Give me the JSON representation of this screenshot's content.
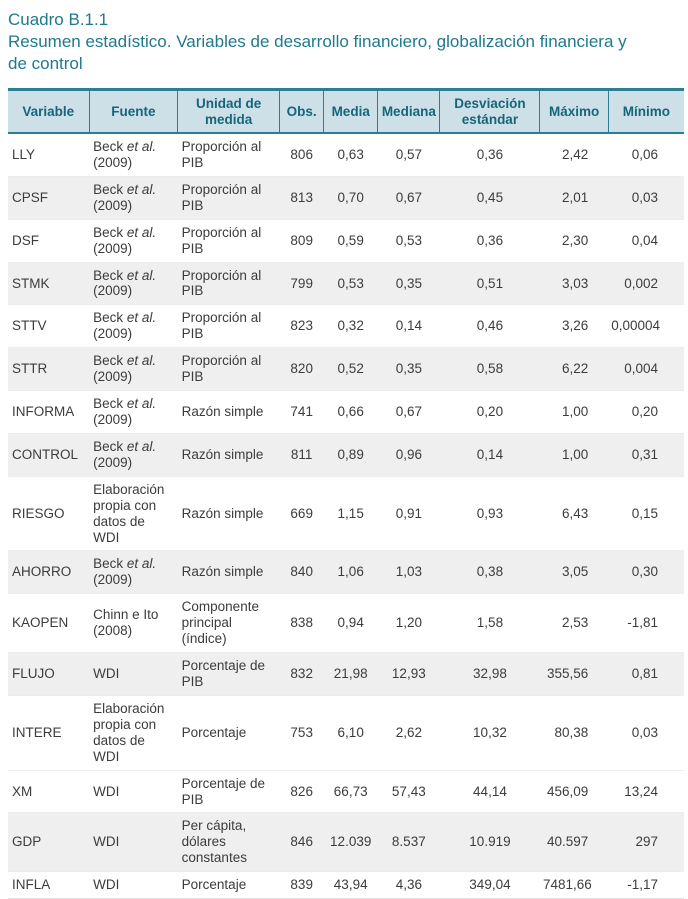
{
  "title": {
    "label": "Cuadro B.1.1",
    "heading": "Resumen estadístico. Variables de desarrollo financiero, globalización financiera y de control"
  },
  "colors": {
    "accent_teal": "#20798c",
    "header_bg": "#cee0e7",
    "header_text": "#17657a",
    "header_divider": "#2c7f91",
    "zebra_row_bg": "#f0efef",
    "row_separator": "#ececec",
    "body_text": "#3c3c3c"
  },
  "table": {
    "columns": [
      {
        "key": "variable",
        "label": "Variable",
        "align": "left",
        "width": "12.0%"
      },
      {
        "key": "fuente",
        "label": "Fuente",
        "align": "left",
        "width": "13.1%"
      },
      {
        "key": "unidad",
        "label": "Unidad de medida",
        "align": "left",
        "width": "15.1%"
      },
      {
        "key": "obs",
        "label": "Obs.",
        "align": "center",
        "width": "6.5%"
      },
      {
        "key": "media",
        "label": "Media",
        "align": "center",
        "width": "8.0%"
      },
      {
        "key": "mediana",
        "label": "Mediana",
        "align": "center",
        "width": "9.2%"
      },
      {
        "key": "desviacion",
        "label": "Desviación estándar",
        "align": "center",
        "width": "14.8%"
      },
      {
        "key": "maximo",
        "label": "Máximo",
        "align": "right",
        "width": "10.1%"
      },
      {
        "key": "minimo",
        "label": "Mínimo",
        "align": "right",
        "width": "11.2%"
      }
    ],
    "rows": [
      {
        "variable": "LLY",
        "fuente": "Beck *et al.* (2009)",
        "unidad": "Proporción al PIB",
        "obs": "806",
        "media": "0,63",
        "mediana": "0,57",
        "desviacion": "0,36",
        "maximo": "2,42",
        "minimo": "0,06",
        "shaded": false
      },
      {
        "variable": "CPSF",
        "fuente": "Beck *et al.* (2009)",
        "unidad": "Proporción al PIB",
        "obs": "813",
        "media": "0,70",
        "mediana": "0,67",
        "desviacion": "0,45",
        "maximo": "2,01",
        "minimo": "0,03",
        "shaded": true
      },
      {
        "variable": "DSF",
        "fuente": "Beck *et al.* (2009)",
        "unidad": "Proporción al PIB",
        "obs": "809",
        "media": "0,59",
        "mediana": "0,53",
        "desviacion": "0,36",
        "maximo": "2,30",
        "minimo": "0,04",
        "shaded": false
      },
      {
        "variable": "STMK",
        "fuente": "Beck *et al.* (2009)",
        "unidad": "Proporción al PIB",
        "obs": "799",
        "media": "0,53",
        "mediana": "0,35",
        "desviacion": "0,51",
        "maximo": "3,03",
        "minimo": "0,002",
        "shaded": true
      },
      {
        "variable": "STTV",
        "fuente": "Beck *et al.* (2009)",
        "unidad": "Proporción al PIB",
        "obs": "823",
        "media": "0,32",
        "mediana": "0,14",
        "desviacion": "0,46",
        "maximo": "3,26",
        "minimo": "0,00004",
        "shaded": false
      },
      {
        "variable": "STTR",
        "fuente": "Beck *et al.* (2009)",
        "unidad": "Proporción al PIB",
        "obs": "820",
        "media": "0,52",
        "mediana": "0,35",
        "desviacion": "0,58",
        "maximo": "6,22",
        "minimo": "0,004",
        "shaded": true
      },
      {
        "variable": "INFORMA",
        "fuente": "Beck *et al.* (2009)",
        "unidad": "Razón simple",
        "obs": "741",
        "media": "0,66",
        "mediana": "0,67",
        "desviacion": "0,20",
        "maximo": "1,00",
        "minimo": "0,20",
        "shaded": false
      },
      {
        "variable": "CONTROL",
        "fuente": "Beck *et al.* (2009)",
        "unidad": "Razón simple",
        "obs": "811",
        "media": "0,89",
        "mediana": "0,96",
        "desviacion": "0,14",
        "maximo": "1,00",
        "minimo": "0,31",
        "shaded": true
      },
      {
        "variable": "RIESGO",
        "fuente": "Elaboración propia con datos de WDI",
        "unidad": "Razón simple",
        "obs": "669",
        "media": "1,15",
        "mediana": "0,91",
        "desviacion": "0,93",
        "maximo": "6,43",
        "minimo": "0,15",
        "shaded": false
      },
      {
        "variable": "AHORRO",
        "fuente": "Beck *et al.* (2009)",
        "unidad": "Razón simple",
        "obs": "840",
        "media": "1,06",
        "mediana": "1,03",
        "desviacion": "0,38",
        "maximo": "3,05",
        "minimo": "0,30",
        "shaded": true
      },
      {
        "variable": "KAOPEN",
        "fuente": "Chinn e Ito (2008)",
        "unidad": "Componente principal (índice)",
        "obs": "838",
        "media": "0,94",
        "mediana": "1,20",
        "desviacion": "1,58",
        "maximo": "2,53",
        "minimo": "-1,81",
        "shaded": false
      },
      {
        "variable": "FLUJO",
        "fuente": "WDI",
        "unidad": "Porcentaje de PIB",
        "obs": "832",
        "media": "21,98",
        "mediana": "12,93",
        "desviacion": "32,98",
        "maximo": "355,56",
        "minimo": "0,81",
        "shaded": true
      },
      {
        "variable": "INTERE",
        "fuente": "Elaboración propia con datos de WDI",
        "unidad": "Porcentaje",
        "obs": "753",
        "media": "6,10",
        "mediana": "2,62",
        "desviacion": "10,32",
        "maximo": "80,38",
        "minimo": "0,03",
        "shaded": false
      },
      {
        "variable": "XM",
        "fuente": "WDI",
        "unidad": "Porcentaje de PIB",
        "obs": "826",
        "media": "66,73",
        "mediana": "57,43",
        "desviacion": "44,14",
        "maximo": "456,09",
        "minimo": "13,24",
        "shaded": false
      },
      {
        "variable": "GDP",
        "fuente": "WDI",
        "unidad": "Per cápita, dólares constantes",
        "obs": "846",
        "media": "12.039",
        "mediana": "8.537",
        "desviacion": "10.919",
        "maximo": "40.597",
        "minimo": "297",
        "shaded": true
      },
      {
        "variable": "INFLA",
        "fuente": "WDI",
        "unidad": "Porcentaje",
        "obs": "839",
        "media": "43,94",
        "mediana": "4,36",
        "desviacion": "349,04",
        "maximo": "7481,66",
        "minimo": "-1,17",
        "shaded": false
      }
    ]
  }
}
